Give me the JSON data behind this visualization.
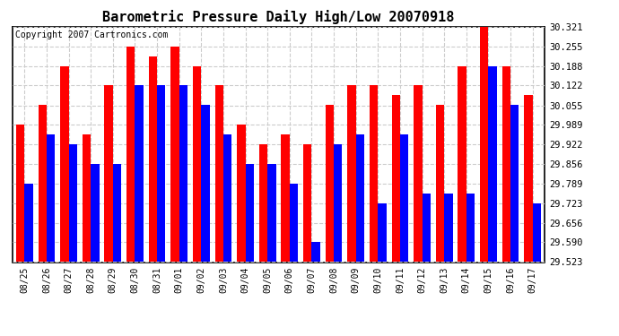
{
  "title": "Barometric Pressure Daily High/Low 20070918",
  "copyright": "Copyright 2007 Cartronics.com",
  "dates": [
    "08/25",
    "08/26",
    "08/27",
    "08/28",
    "08/29",
    "08/30",
    "08/31",
    "09/01",
    "09/02",
    "09/03",
    "09/04",
    "09/05",
    "09/06",
    "09/07",
    "09/08",
    "09/09",
    "09/10",
    "09/11",
    "09/12",
    "09/13",
    "09/14",
    "09/15",
    "09/16",
    "09/17"
  ],
  "highs": [
    29.989,
    30.055,
    30.188,
    29.956,
    30.122,
    30.255,
    30.222,
    30.255,
    30.188,
    30.122,
    29.989,
    29.922,
    29.956,
    29.922,
    30.055,
    30.122,
    30.122,
    30.089,
    30.122,
    30.055,
    30.188,
    30.321,
    30.188,
    30.089
  ],
  "lows": [
    29.789,
    29.956,
    29.922,
    29.856,
    29.856,
    30.122,
    30.122,
    30.122,
    30.055,
    29.956,
    29.856,
    29.856,
    29.789,
    29.59,
    29.922,
    29.956,
    29.723,
    29.956,
    29.756,
    29.756,
    29.756,
    30.188,
    30.055,
    29.723
  ],
  "ymin": 29.523,
  "ymax": 30.321,
  "yticks": [
    29.523,
    29.59,
    29.656,
    29.723,
    29.789,
    29.856,
    29.922,
    29.989,
    30.055,
    30.122,
    30.188,
    30.255,
    30.321
  ],
  "high_color": "#ff0000",
  "low_color": "#0000ff",
  "bg_color": "#ffffff",
  "plot_bg_color": "#ffffff",
  "grid_color": "#cccccc",
  "title_fontsize": 11,
  "copyright_fontsize": 7,
  "bar_width": 0.38
}
